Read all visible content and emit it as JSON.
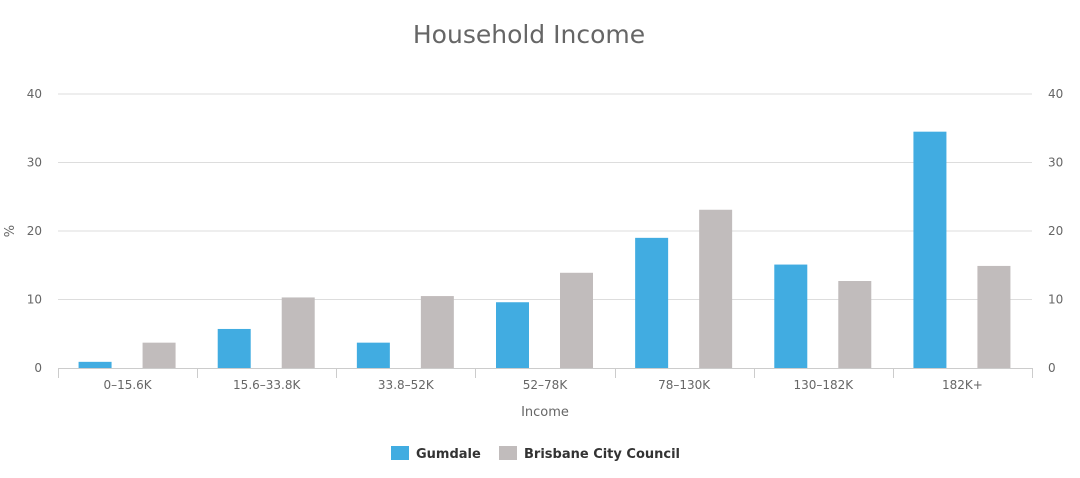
{
  "chart_data": {
    "type": "bar",
    "title": "Household Income",
    "xlabel": "Income",
    "ylabel": "%",
    "ylim": [
      0,
      40
    ],
    "yticks": [
      0,
      10,
      20,
      30,
      40
    ],
    "ytick_labels": [
      "0",
      "10",
      "20",
      "30",
      "40"
    ],
    "categories": [
      "0–15.6K",
      "15.6–33.8K",
      "33.8–52K",
      "52–78K",
      "78–130K",
      "130–182K",
      "182K+"
    ],
    "series": [
      {
        "name": "Gumdale",
        "color": "#41ace1",
        "values": [
          0.9,
          5.7,
          3.7,
          9.6,
          19.0,
          15.1,
          34.5
        ]
      },
      {
        "name": "Brisbane City Council",
        "color": "#c1bcbc",
        "values": [
          3.7,
          10.3,
          10.5,
          13.9,
          23.1,
          12.7,
          14.9
        ]
      }
    ],
    "grid": true,
    "legend_position": "bottom-center"
  }
}
